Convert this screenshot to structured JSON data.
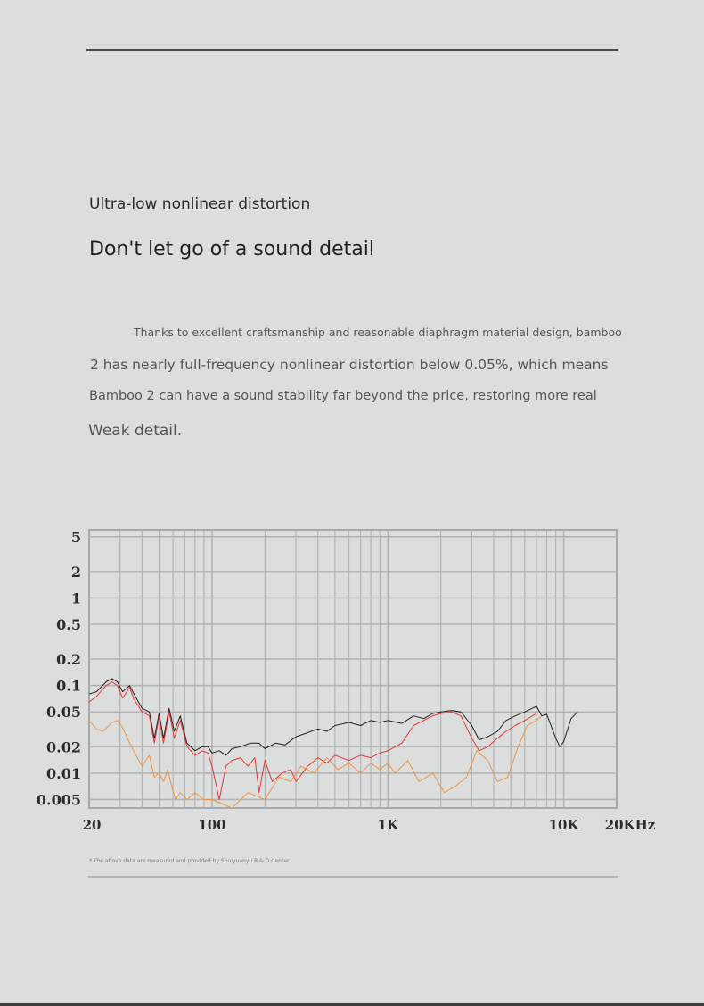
{
  "page": {
    "subtitle": "Ultra-low nonlinear distortion",
    "headline": "Don't let go of a sound detail",
    "body_lines": [
      "Thanks to excellent craftsmanship and reasonable diaphragm material design, bamboo",
      "2 has nearly full-frequency nonlinear distortion below 0.05%, which means",
      "Bamboo 2 can have a sound stability far beyond the price, restoring more real",
      "Weak detail."
    ],
    "footnote": "* The above data are measured and provided by Shuiyuanyu R & D Center"
  },
  "colors": {
    "background": "#dcdedd",
    "grid": "#b4b4b4",
    "frame": "#a8a8a8",
    "series_black": "#1f1f1f",
    "series_red": "#e0383b",
    "series_orange": "#ee9440"
  },
  "chart_data": {
    "type": "line",
    "x_scale": "log",
    "y_scale": "log",
    "xlim": [
      20,
      20000
    ],
    "ylim": [
      0.004,
      6
    ],
    "grid": true,
    "x_tick_labels": [
      {
        "value": 20,
        "label": "20"
      },
      {
        "value": 100,
        "label": "100"
      },
      {
        "value": 1000,
        "label": "1K"
      },
      {
        "value": 10000,
        "label": "10K"
      },
      {
        "value": 20000,
        "label": "20KHz"
      }
    ],
    "y_tick_labels": [
      {
        "value": 5,
        "label": "5"
      },
      {
        "value": 2,
        "label": "2"
      },
      {
        "value": 1,
        "label": "1"
      },
      {
        "value": 0.5,
        "label": "0.5"
      },
      {
        "value": 0.2,
        "label": "0.2"
      },
      {
        "value": 0.1,
        "label": "0.1"
      },
      {
        "value": 0.05,
        "label": "0.05"
      },
      {
        "value": 0.02,
        "label": "0.02"
      },
      {
        "value": 0.01,
        "label": "0.01"
      },
      {
        "value": 0.005,
        "label": "0.005"
      }
    ],
    "series": [
      {
        "color": "#1f1f1f",
        "points": [
          [
            20,
            0.08
          ],
          [
            22,
            0.085
          ],
          [
            25,
            0.11
          ],
          [
            27,
            0.12
          ],
          [
            29,
            0.11
          ],
          [
            31,
            0.085
          ],
          [
            34,
            0.1
          ],
          [
            36,
            0.08
          ],
          [
            40,
            0.055
          ],
          [
            44,
            0.05
          ],
          [
            47,
            0.025
          ],
          [
            50,
            0.048
          ],
          [
            53,
            0.025
          ],
          [
            57,
            0.055
          ],
          [
            61,
            0.03
          ],
          [
            66,
            0.045
          ],
          [
            72,
            0.022
          ],
          [
            80,
            0.018
          ],
          [
            88,
            0.02
          ],
          [
            95,
            0.02
          ],
          [
            100,
            0.017
          ],
          [
            110,
            0.018
          ],
          [
            120,
            0.016
          ],
          [
            130,
            0.019
          ],
          [
            145,
            0.02
          ],
          [
            165,
            0.022
          ],
          [
            185,
            0.022
          ],
          [
            200,
            0.019
          ],
          [
            230,
            0.022
          ],
          [
            260,
            0.021
          ],
          [
            300,
            0.026
          ],
          [
            350,
            0.029
          ],
          [
            400,
            0.032
          ],
          [
            450,
            0.03
          ],
          [
            500,
            0.035
          ],
          [
            600,
            0.038
          ],
          [
            700,
            0.035
          ],
          [
            800,
            0.04
          ],
          [
            900,
            0.038
          ],
          [
            1000,
            0.04
          ],
          [
            1200,
            0.037
          ],
          [
            1400,
            0.045
          ],
          [
            1600,
            0.042
          ],
          [
            1800,
            0.048
          ],
          [
            2000,
            0.05
          ],
          [
            2300,
            0.052
          ],
          [
            2600,
            0.05
          ],
          [
            3000,
            0.035
          ],
          [
            3300,
            0.024
          ],
          [
            3700,
            0.026
          ],
          [
            4200,
            0.03
          ],
          [
            4700,
            0.04
          ],
          [
            5300,
            0.045
          ],
          [
            6000,
            0.05
          ],
          [
            7000,
            0.058
          ],
          [
            7500,
            0.045
          ],
          [
            8000,
            0.047
          ],
          [
            9000,
            0.025
          ],
          [
            9500,
            0.02
          ],
          [
            10000,
            0.023
          ],
          [
            11000,
            0.042
          ],
          [
            12000,
            0.05
          ]
        ]
      },
      {
        "color": "#e0383b",
        "points": [
          [
            20,
            0.065
          ],
          [
            22,
            0.075
          ],
          [
            25,
            0.1
          ],
          [
            27,
            0.11
          ],
          [
            29,
            0.1
          ],
          [
            31,
            0.072
          ],
          [
            34,
            0.095
          ],
          [
            36,
            0.07
          ],
          [
            40,
            0.05
          ],
          [
            44,
            0.045
          ],
          [
            47,
            0.022
          ],
          [
            50,
            0.044
          ],
          [
            53,
            0.022
          ],
          [
            57,
            0.05
          ],
          [
            61,
            0.025
          ],
          [
            66,
            0.04
          ],
          [
            72,
            0.02
          ],
          [
            80,
            0.016
          ],
          [
            88,
            0.018
          ],
          [
            95,
            0.017
          ],
          [
            100,
            0.012
          ],
          [
            110,
            0.005
          ],
          [
            120,
            0.012
          ],
          [
            130,
            0.014
          ],
          [
            145,
            0.015
          ],
          [
            160,
            0.012
          ],
          [
            175,
            0.015
          ],
          [
            185,
            0.006
          ],
          [
            200,
            0.014
          ],
          [
            220,
            0.008
          ],
          [
            250,
            0.01
          ],
          [
            280,
            0.011
          ],
          [
            300,
            0.008
          ],
          [
            350,
            0.012
          ],
          [
            400,
            0.015
          ],
          [
            450,
            0.013
          ],
          [
            500,
            0.016
          ],
          [
            600,
            0.014
          ],
          [
            700,
            0.016
          ],
          [
            800,
            0.015
          ],
          [
            900,
            0.017
          ],
          [
            1000,
            0.018
          ],
          [
            1200,
            0.022
          ],
          [
            1400,
            0.035
          ],
          [
            1600,
            0.04
          ],
          [
            1800,
            0.045
          ],
          [
            2000,
            0.048
          ],
          [
            2300,
            0.05
          ],
          [
            2600,
            0.045
          ],
          [
            3000,
            0.025
          ],
          [
            3300,
            0.018
          ],
          [
            3700,
            0.02
          ],
          [
            4200,
            0.025
          ],
          [
            4700,
            0.03
          ],
          [
            5300,
            0.035
          ],
          [
            6000,
            0.04
          ],
          [
            7000,
            0.048
          ]
        ]
      },
      {
        "color": "#ee9440",
        "points": [
          [
            20,
            0.04
          ],
          [
            22,
            0.032
          ],
          [
            24,
            0.03
          ],
          [
            27,
            0.038
          ],
          [
            29,
            0.04
          ],
          [
            31,
            0.033
          ],
          [
            34,
            0.022
          ],
          [
            37,
            0.016
          ],
          [
            40,
            0.012
          ],
          [
            44,
            0.016
          ],
          [
            47,
            0.009
          ],
          [
            50,
            0.01
          ],
          [
            53,
            0.008
          ],
          [
            56,
            0.011
          ],
          [
            59,
            0.007
          ],
          [
            62,
            0.005
          ],
          [
            66,
            0.006
          ],
          [
            72,
            0.005
          ],
          [
            80,
            0.006
          ],
          [
            90,
            0.005
          ],
          [
            100,
            0.005
          ],
          [
            130,
            0.004
          ],
          [
            160,
            0.006
          ],
          [
            200,
            0.005
          ],
          [
            240,
            0.009
          ],
          [
            280,
            0.008
          ],
          [
            320,
            0.012
          ],
          [
            380,
            0.01
          ],
          [
            450,
            0.015
          ],
          [
            520,
            0.011
          ],
          [
            600,
            0.013
          ],
          [
            700,
            0.01
          ],
          [
            800,
            0.013
          ],
          [
            900,
            0.011
          ],
          [
            1000,
            0.013
          ],
          [
            1100,
            0.01
          ],
          [
            1300,
            0.014
          ],
          [
            1500,
            0.008
          ],
          [
            1800,
            0.01
          ],
          [
            2100,
            0.006
          ],
          [
            2400,
            0.007
          ],
          [
            2800,
            0.009
          ],
          [
            3200,
            0.018
          ],
          [
            3700,
            0.014
          ],
          [
            4200,
            0.008
          ],
          [
            4800,
            0.009
          ],
          [
            5500,
            0.02
          ],
          [
            6200,
            0.035
          ],
          [
            7000,
            0.04
          ],
          [
            7500,
            0.045
          ]
        ]
      }
    ]
  }
}
